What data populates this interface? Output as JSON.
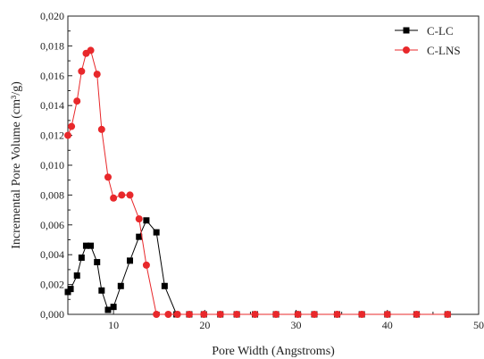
{
  "chart_data": {
    "type": "line",
    "xlabel": "Pore Width (Angstroms)",
    "ylabel": "Incremental Pore Volume (cm³/g)",
    "xlim": [
      5,
      50
    ],
    "ylim": [
      0,
      0.02
    ],
    "xticks": [
      "10",
      "20",
      "30",
      "40",
      "50"
    ],
    "xtick_values": [
      10,
      20,
      30,
      40,
      50
    ],
    "yticks": [
      "0,000",
      "0,002",
      "0,004",
      "0,006",
      "0,008",
      "0,010",
      "0,012",
      "0,014",
      "0,016",
      "0,018",
      "0,020"
    ],
    "ytick_values": [
      0,
      0.002,
      0.004,
      0.006,
      0.008,
      0.01,
      0.012,
      0.014,
      0.016,
      0.018,
      0.02
    ],
    "grid": false,
    "legend_position": "top-right",
    "series": [
      {
        "name": "C-LC",
        "color": "#000000",
        "marker": "square",
        "x": [
          5.0,
          5.3,
          6.0,
          6.5,
          7.0,
          7.5,
          8.2,
          8.7,
          9.4,
          10.0,
          10.8,
          11.8,
          12.8,
          13.6,
          14.7,
          15.6,
          16.9,
          18.3,
          19.9,
          21.7,
          23.5,
          25.5,
          27.8,
          30.2,
          32.0,
          34.5,
          37.2,
          40.0,
          43.2,
          46.6
        ],
        "y": [
          0.0015,
          0.0017,
          0.0026,
          0.0038,
          0.0046,
          0.0046,
          0.0035,
          0.0016,
          0.0003,
          0.0005,
          0.0019,
          0.0036,
          0.0052,
          0.0063,
          0.0055,
          0.0019,
          0.0,
          0.0,
          0.0,
          0.0,
          0.0,
          0.0,
          0.0,
          0.0,
          0.0,
          0.0,
          0.0,
          0.0,
          0.0,
          0.0
        ]
      },
      {
        "name": "C-LNS",
        "color": "#e8282b",
        "marker": "circle",
        "x": [
          5.0,
          5.4,
          6.0,
          6.5,
          7.0,
          7.5,
          8.2,
          8.7,
          9.4,
          10.0,
          10.9,
          11.8,
          12.8,
          13.6,
          14.7,
          16.0,
          17.0,
          18.3,
          19.9,
          21.7,
          23.5,
          25.5,
          27.8,
          30.2,
          32.0,
          34.5,
          37.2,
          40.0,
          43.2,
          46.6
        ],
        "y": [
          0.012,
          0.0126,
          0.0143,
          0.0163,
          0.0175,
          0.0177,
          0.0161,
          0.0124,
          0.0092,
          0.0078,
          0.008,
          0.008,
          0.0064,
          0.0033,
          0.0,
          0.0,
          0.0,
          0.0,
          0.0,
          0.0,
          0.0,
          0.0,
          0.0,
          0.0,
          0.0,
          0.0,
          0.0,
          0.0,
          0.0,
          0.0
        ]
      }
    ]
  }
}
